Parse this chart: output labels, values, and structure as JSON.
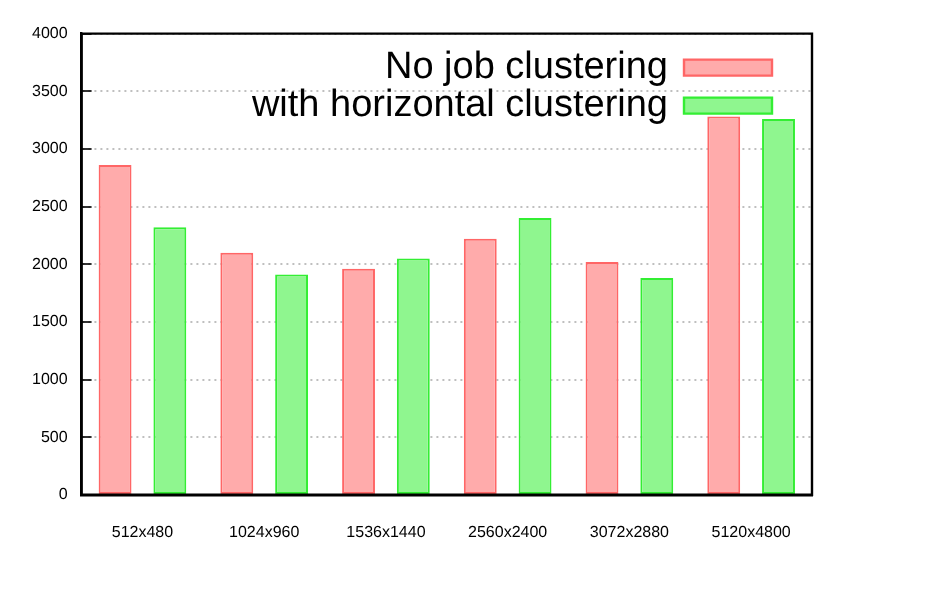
{
  "chart_data": {
    "type": "bar",
    "categories": [
      "512x480",
      "1024x960",
      "1536x1440",
      "2560x2400",
      "3072x2880",
      "5120x4800"
    ],
    "series": [
      {
        "name": "No job clustering",
        "color": "#ff6666",
        "values": [
          2860,
          2100,
          1960,
          2220,
          2020,
          3280
        ]
      },
      {
        "name": "with horizontal clustering",
        "color": "#33ee33",
        "values": [
          2320,
          1910,
          2050,
          2400,
          1880,
          3260
        ]
      }
    ],
    "ylim": [
      0,
      4000
    ],
    "yticks": [
      0,
      500,
      1000,
      1500,
      2000,
      2500,
      3000,
      3500,
      4000
    ],
    "grid": "y",
    "legend": "top right"
  }
}
